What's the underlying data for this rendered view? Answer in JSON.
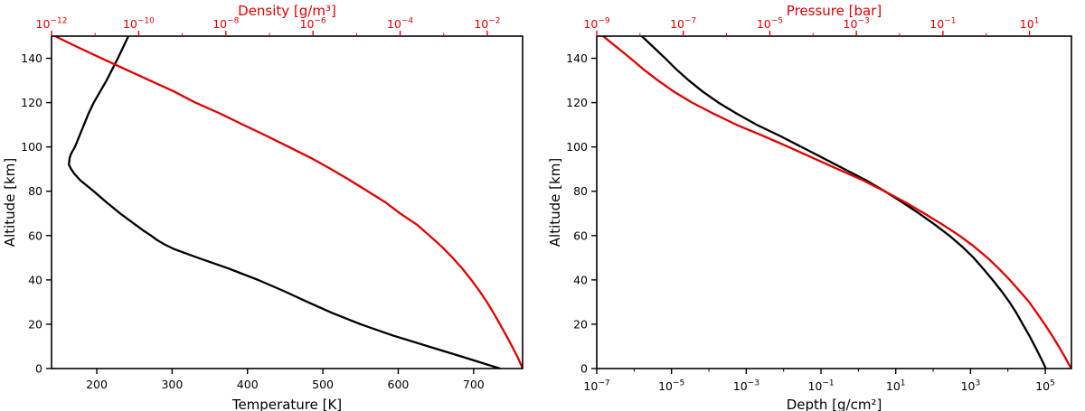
{
  "figure": {
    "background": "#ffffff",
    "accent_red": "#e00000",
    "accent_black": "#000000"
  },
  "chart_data": [
    {
      "name": "temperature-density-panel",
      "type": "line",
      "axes": {
        "left": {
          "label": "Altitude [km]",
          "min": 0,
          "max": 150,
          "ticks": [
            0,
            20,
            40,
            60,
            80,
            100,
            120,
            140
          ]
        },
        "bottom": {
          "label": "Temperature [K]",
          "scale": "linear",
          "min": 140,
          "max": 765,
          "ticks": [
            200,
            300,
            400,
            500,
            600,
            700
          ],
          "color": "#000000"
        },
        "top": {
          "label": "Density [g/m³]",
          "scale": "log",
          "min_exp": -12,
          "max_exp": -1.19,
          "tick_exps": [
            -12,
            -10,
            -8,
            -6,
            -4,
            -2
          ],
          "color": "#e00000"
        }
      },
      "series": [
        {
          "name": "temperature",
          "axis": "bottom",
          "color": "#000000",
          "points": [
            [
              0,
              735
            ],
            [
              5,
              688
            ],
            [
              10,
              640
            ],
            [
              15,
              592
            ],
            [
              20,
              550
            ],
            [
              25,
              513
            ],
            [
              30,
              480
            ],
            [
              35,
              448
            ],
            [
              40,
              414
            ],
            [
              45,
              376
            ],
            [
              50,
              334
            ],
            [
              52,
              318
            ],
            [
              54,
              302
            ],
            [
              56,
              290
            ],
            [
              58,
              280
            ],
            [
              60,
              272
            ],
            [
              62,
              263
            ],
            [
              65,
              251
            ],
            [
              70,
              231
            ],
            [
              75,
              213
            ],
            [
              80,
              196
            ],
            [
              85,
              178
            ],
            [
              88,
              170
            ],
            [
              90,
              166
            ],
            [
              92,
              163
            ],
            [
              95,
              164
            ],
            [
              97,
              166
            ],
            [
              100,
              171
            ],
            [
              105,
              177
            ],
            [
              110,
              183
            ],
            [
              115,
              189
            ],
            [
              120,
              196
            ],
            [
              130,
              213
            ],
            [
              140,
              228
            ],
            [
              150,
              242
            ]
          ]
        },
        {
          "name": "density",
          "axis": "top",
          "color": "#e00000",
          "points": [
            [
              0,
              0.065
            ],
            [
              5,
              0.05
            ],
            [
              10,
              0.037
            ],
            [
              15,
              0.027
            ],
            [
              20,
              0.0195
            ],
            [
              25,
              0.014
            ],
            [
              30,
              0.0098
            ],
            [
              35,
              0.0066
            ],
            [
              40,
              0.0043
            ],
            [
              45,
              0.0027
            ],
            [
              50,
              0.0016
            ],
            [
              55,
              0.0009
            ],
            [
              60,
              0.00047
            ],
            [
              65,
              0.00024
            ],
            [
              70,
              0.0001
            ],
            [
              75,
              4.6e-05
            ],
            [
              80,
              1.8e-05
            ],
            [
              85,
              7e-06
            ],
            [
              90,
              2.6e-06
            ],
            [
              95,
              9e-07
            ],
            [
              100,
              2.8e-07
            ],
            [
              105,
              8.5e-08
            ],
            [
              110,
              2.5e-08
            ],
            [
              115,
              7.5e-09
            ],
            [
              120,
              2e-09
            ],
            [
              125,
              6.5e-10
            ],
            [
              130,
              1.8e-10
            ],
            [
              135,
              5e-11
            ],
            [
              140,
              1.4e-11
            ],
            [
              145,
              4e-12
            ],
            [
              150,
              1.2e-12
            ]
          ]
        }
      ]
    },
    {
      "name": "depth-pressure-panel",
      "type": "line",
      "axes": {
        "left": {
          "label": "Altitude [km]",
          "min": 0,
          "max": 150,
          "ticks": [
            0,
            20,
            40,
            60,
            80,
            100,
            120,
            140
          ]
        },
        "bottom": {
          "label": "Depth [g/cm²]",
          "scale": "log",
          "min_exp": -7,
          "max_exp": 5.7,
          "tick_exps": [
            -7,
            -5,
            -3,
            -1,
            1,
            3,
            5
          ],
          "color": "#000000"
        },
        "top": {
          "label": "Pressure [bar]",
          "scale": "log",
          "min_exp": -9,
          "max_exp": 1.97,
          "tick_exps": [
            -9,
            -7,
            -5,
            -3,
            -1,
            1
          ],
          "color": "#e00000"
        }
      },
      "series": [
        {
          "name": "depth",
          "axis": "bottom",
          "color": "#000000",
          "points": [
            [
              0,
              104000.0
            ],
            [
              5,
              75000.0
            ],
            [
              10,
              53000.0
            ],
            [
              15,
              37000.0
            ],
            [
              20,
              25000.0
            ],
            [
              25,
              17000.0
            ],
            [
              30,
              11000.0
            ],
            [
              35,
              6700.0
            ],
            [
              40,
              3900.0
            ],
            [
              45,
              2200.0
            ],
            [
              50,
              1210.0
            ],
            [
              55,
              600.0
            ],
            [
              60,
              270.0
            ],
            [
              65,
              110.0
            ],
            [
              70,
              42.0
            ],
            [
              75,
              15.0
            ],
            [
              80,
              5.1
            ],
            [
              85,
              1.6
            ],
            [
              90,
              0.42
            ],
            [
              95,
              0.113
            ],
            [
              100,
              0.03
            ],
            [
              105,
              0.0079
            ],
            [
              110,
              0.0019
            ],
            [
              115,
              0.00056
            ],
            [
              120,
              0.00018
            ],
            [
              125,
              6.8e-05
            ],
            [
              130,
              2.9e-05
            ],
            [
              135,
              1.35e-05
            ],
            [
              140,
              6.8e-06
            ],
            [
              145,
              3.3e-06
            ],
            [
              150,
              1.6e-06
            ]
          ]
        },
        {
          "name": "pressure",
          "axis": "top",
          "color": "#e00000",
          "points": [
            [
              0,
              92.1
            ],
            [
              5,
              66.7
            ],
            [
              10,
              47.4
            ],
            [
              15,
              33.0
            ],
            [
              20,
              22.5
            ],
            [
              25,
              14.9
            ],
            [
              30,
              9.85
            ],
            [
              35,
              5.9
            ],
            [
              40,
              3.5
            ],
            [
              45,
              1.98
            ],
            [
              50,
              1.07
            ],
            [
              55,
              0.53
            ],
            [
              60,
              0.24
            ],
            [
              65,
              0.097
            ],
            [
              70,
              0.037
            ],
            [
              75,
              0.0136
            ],
            [
              80,
              0.0045
            ],
            [
              85,
              0.0014
            ],
            [
              90,
              0.00037
            ],
            [
              95,
              0.0001
            ],
            [
              100,
              2.7e-05
            ],
            [
              105,
              7e-06
            ],
            [
              110,
              1.7e-06
            ],
            [
              115,
              5e-07
            ],
            [
              120,
              1.6e-07
            ],
            [
              125,
              6e-08
            ],
            [
              130,
              2.6e-08
            ],
            [
              135,
              1.2e-08
            ],
            [
              140,
              6e-09
            ],
            [
              145,
              2.9e-09
            ],
            [
              150,
              1.4e-09
            ]
          ]
        }
      ]
    }
  ]
}
